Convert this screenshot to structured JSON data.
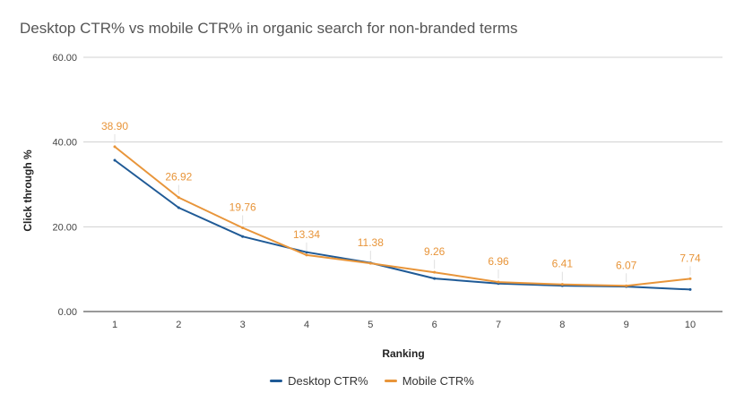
{
  "chart_data": {
    "type": "line",
    "title": "Desktop CTR% vs mobile CTR% in organic search for non-branded terms",
    "xlabel": "Ranking",
    "ylabel": "Click through %",
    "x": [
      1,
      2,
      3,
      4,
      5,
      6,
      7,
      8,
      9,
      10
    ],
    "x_tick_labels": [
      "1",
      "2",
      "3",
      "4",
      "5",
      "6",
      "7",
      "8",
      "9",
      "10"
    ],
    "y_tick_labels": [
      "0.00",
      "20.00",
      "40.00",
      "60.00"
    ],
    "y_ticks": [
      0,
      20,
      40,
      60
    ],
    "ylim": [
      0,
      60
    ],
    "grid": true,
    "legend_position": "bottom",
    "series": [
      {
        "name": "Desktop CTR%",
        "color": "#1f5a96",
        "values": [
          35.7,
          24.5,
          17.7,
          14.0,
          11.5,
          7.8,
          6.6,
          6.1,
          5.9,
          5.2
        ]
      },
      {
        "name": "Mobile CTR%",
        "color": "#e8953a",
        "values": [
          38.9,
          26.92,
          19.76,
          13.34,
          11.38,
          9.26,
          6.96,
          6.41,
          6.07,
          7.74
        ],
        "data_labels": [
          "38.90",
          "26.92",
          "19.76",
          "13.34",
          "11.38",
          "9.26",
          "6.96",
          "6.41",
          "6.07",
          "7.74"
        ]
      }
    ]
  }
}
